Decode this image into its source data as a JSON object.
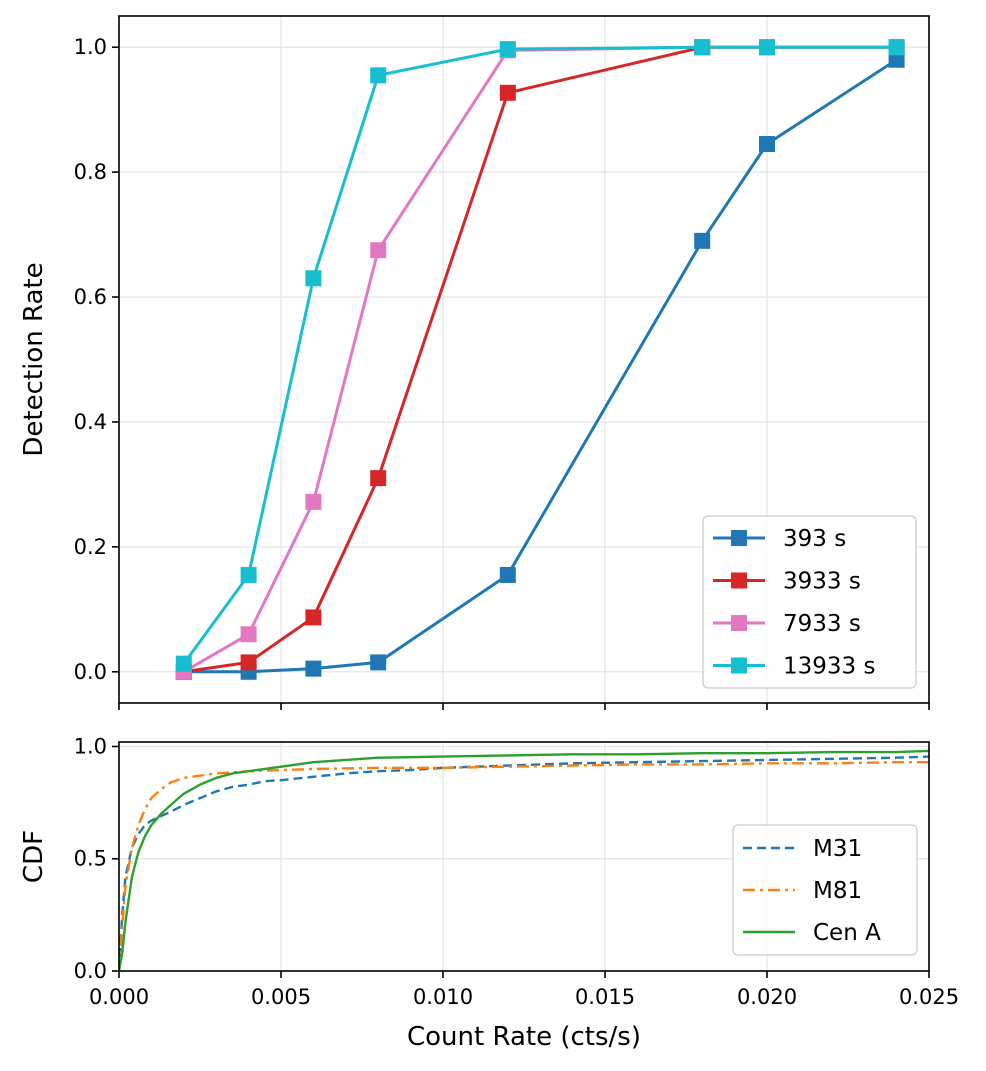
{
  "chart_data": [
    {
      "type": "line",
      "panel": "top",
      "xlabel": "",
      "ylabel": "Detection Rate",
      "xlim": [
        0.0,
        0.025
      ],
      "ylim": [
        -0.05,
        1.05
      ],
      "yticks": [
        0.0,
        0.2,
        0.4,
        0.6,
        0.8,
        1.0
      ],
      "ytick_labels": [
        "0.0",
        "0.2",
        "0.4",
        "0.6",
        "0.8",
        "1.0"
      ],
      "grid": true,
      "legend_position": "lower-right",
      "series": [
        {
          "name": "393 s",
          "color": "#1f77b4",
          "marker": "square",
          "x": [
            0.002,
            0.004,
            0.006,
            0.008,
            0.012,
            0.018,
            0.02,
            0.024
          ],
          "y": [
            0.0,
            0.0,
            0.005,
            0.015,
            0.155,
            0.69,
            0.845,
            0.98
          ]
        },
        {
          "name": "3933 s",
          "color": "#d62728",
          "marker": "square",
          "x": [
            0.002,
            0.004,
            0.006,
            0.008,
            0.012,
            0.018,
            0.02,
            0.024
          ],
          "y": [
            0.0,
            0.015,
            0.087,
            0.31,
            0.927,
            1.0,
            1.0,
            1.0
          ]
        },
        {
          "name": "7933 s",
          "color": "#e377c2",
          "marker": "square",
          "x": [
            0.002,
            0.004,
            0.006,
            0.008,
            0.012,
            0.018,
            0.02,
            0.024
          ],
          "y": [
            0.0,
            0.06,
            0.272,
            0.675,
            0.995,
            1.0,
            1.0,
            1.0
          ]
        },
        {
          "name": "13933 s",
          "color": "#17becf",
          "marker": "square",
          "x": [
            0.002,
            0.004,
            0.006,
            0.008,
            0.012,
            0.018,
            0.02,
            0.024
          ],
          "y": [
            0.013,
            0.155,
            0.63,
            0.955,
            0.997,
            1.0,
            1.0,
            1.0
          ]
        }
      ]
    },
    {
      "type": "line",
      "panel": "bottom",
      "xlabel": "Count Rate (cts/s)",
      "ylabel": "CDF",
      "xlim": [
        0.0,
        0.025
      ],
      "ylim": [
        0.0,
        1.02
      ],
      "xticks": [
        0.0,
        0.005,
        0.01,
        0.015,
        0.02,
        0.025
      ],
      "xtick_labels": [
        "0.000",
        "0.005",
        "0.010",
        "0.015",
        "0.020",
        "0.025"
      ],
      "yticks": [
        0.0,
        0.5,
        1.0
      ],
      "ytick_labels": [
        "0.0",
        "0.5",
        "1.0"
      ],
      "grid": true,
      "legend_position": "lower-right",
      "series": [
        {
          "name": "M31",
          "color": "#1f77b4",
          "linestyle": "dashed",
          "x": [
            0.0,
            0.0001,
            0.0002,
            0.0004,
            0.0006,
            0.0008,
            0.001,
            0.0013,
            0.0016,
            0.002,
            0.0025,
            0.003,
            0.0035,
            0.004,
            0.0045,
            0.005,
            0.006,
            0.007,
            0.008,
            0.009,
            0.01,
            0.012,
            0.014,
            0.016,
            0.018,
            0.02,
            0.022,
            0.024,
            0.025
          ],
          "y": [
            0.0,
            0.25,
            0.42,
            0.55,
            0.61,
            0.65,
            0.67,
            0.69,
            0.71,
            0.74,
            0.77,
            0.8,
            0.82,
            0.83,
            0.845,
            0.85,
            0.865,
            0.88,
            0.89,
            0.895,
            0.905,
            0.915,
            0.925,
            0.93,
            0.935,
            0.94,
            0.945,
            0.95,
            0.955
          ]
        },
        {
          "name": "M81",
          "color": "#ff7f0e",
          "linestyle": "dashdot",
          "x": [
            0.0,
            0.0001,
            0.0002,
            0.0004,
            0.0006,
            0.0008,
            0.001,
            0.0013,
            0.0016,
            0.002,
            0.0025,
            0.003,
            0.0035,
            0.004,
            0.005,
            0.006,
            0.008,
            0.01,
            0.012,
            0.014,
            0.016,
            0.018,
            0.02,
            0.022,
            0.024,
            0.025
          ],
          "y": [
            0.0,
            0.2,
            0.38,
            0.55,
            0.65,
            0.72,
            0.77,
            0.81,
            0.84,
            0.86,
            0.87,
            0.88,
            0.885,
            0.89,
            0.895,
            0.9,
            0.905,
            0.905,
            0.91,
            0.915,
            0.92,
            0.92,
            0.925,
            0.925,
            0.93,
            0.93
          ]
        },
        {
          "name": "Cen A",
          "color": "#2ca02c",
          "linestyle": "solid",
          "x": [
            0.0,
            0.0001,
            0.0002,
            0.0004,
            0.0006,
            0.0008,
            0.001,
            0.0013,
            0.0016,
            0.002,
            0.0025,
            0.003,
            0.0035,
            0.004,
            0.0045,
            0.005,
            0.006,
            0.007,
            0.008,
            0.01,
            0.012,
            0.014,
            0.016,
            0.018,
            0.02,
            0.022,
            0.024,
            0.025
          ],
          "y": [
            0.0,
            0.08,
            0.22,
            0.42,
            0.53,
            0.6,
            0.65,
            0.7,
            0.74,
            0.79,
            0.83,
            0.86,
            0.88,
            0.89,
            0.9,
            0.91,
            0.93,
            0.94,
            0.95,
            0.955,
            0.96,
            0.965,
            0.965,
            0.97,
            0.97,
            0.975,
            0.975,
            0.98
          ]
        }
      ]
    }
  ]
}
